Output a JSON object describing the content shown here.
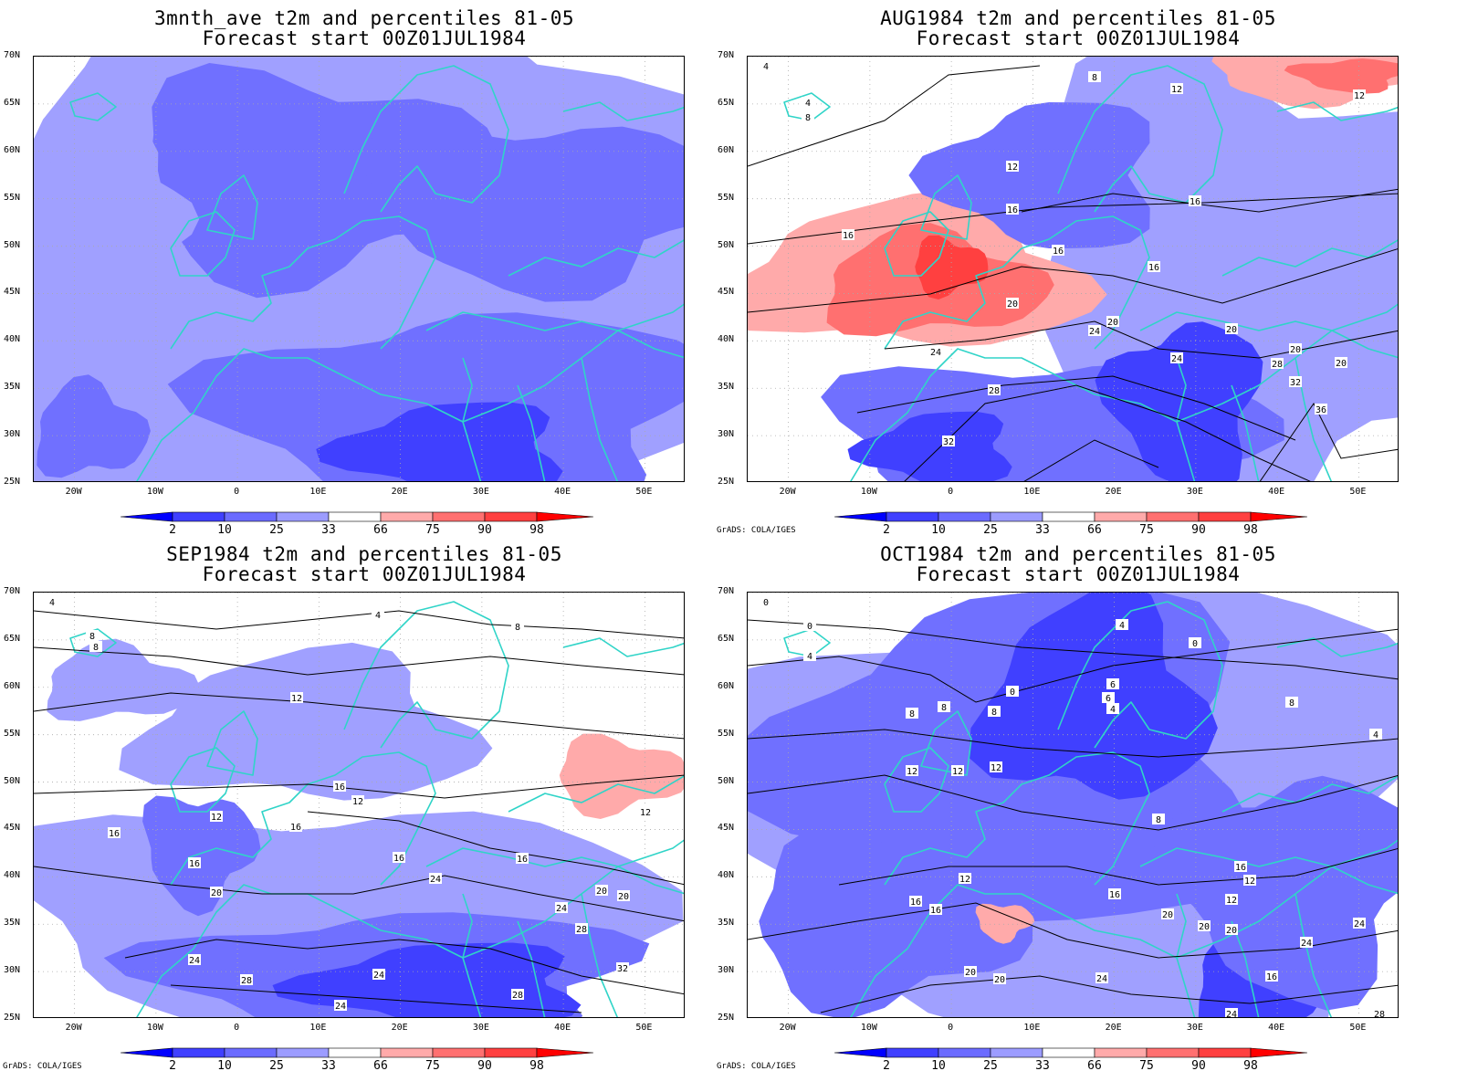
{
  "panels": [
    {
      "line1": "3mnth_ave t2m and percentiles 81-05",
      "line2": "Forecast start 00Z01JUL1984",
      "credit": ""
    },
    {
      "line1": "AUG1984 t2m and percentiles 81-05",
      "line2": "Forecast start 00Z01JUL1984",
      "credit": "GrADS: COLA/IGES"
    },
    {
      "line1": "SEP1984 t2m and percentiles 81-05",
      "line2": "Forecast start 00Z01JUL1984",
      "credit": "GrADS: COLA/IGES"
    },
    {
      "line1": "OCT1984 t2m and percentiles 81-05",
      "line2": "Forecast start 00Z01JUL1984",
      "credit": "GrADS: COLA/IGES"
    }
  ],
  "map": {
    "lat_labels": [
      "70N",
      "65N",
      "60N",
      "55N",
      "50N",
      "45N",
      "40N",
      "35N",
      "30N",
      "25N"
    ],
    "lon_labels": [
      "20W",
      "10W",
      "0",
      "10E",
      "20E",
      "30E",
      "40E",
      "50E"
    ],
    "lon_range": [
      -25,
      55
    ],
    "lat_range": [
      25,
      70
    ]
  },
  "colorbar": {
    "labels": [
      "2",
      "10",
      "25",
      "33",
      "66",
      "75",
      "90",
      "98"
    ],
    "colors": [
      "#0000ff",
      "#4040ff",
      "#6b6bff",
      "#9c9cff",
      "#ffffff",
      "#ffaaaa",
      "#ff7070",
      "#ff4040",
      "#ff0000"
    ]
  },
  "colors": {
    "coast": "#30d4c8",
    "contour": "#000000",
    "grid": "#aaaaaa",
    "shade_33": "#a0a0ff",
    "shade_25": "#7070ff",
    "shade_10": "#4040ff",
    "shade_66": "#ffaaaa",
    "shade_75": "#ff7070",
    "shade_90": "#ff4040"
  },
  "contour_labels": [
    [],
    [
      "4",
      "4",
      "8",
      "8",
      "12",
      "12",
      "12",
      "16",
      "16",
      "16",
      "16",
      "16",
      "20",
      "20",
      "20",
      "20",
      "20",
      "24",
      "24",
      "24",
      "28",
      "28",
      "32",
      "32",
      "36"
    ],
    [
      "4",
      "4",
      "8",
      "8",
      "8",
      "12",
      "12",
      "12",
      "12",
      "16",
      "16",
      "16",
      "16",
      "16",
      "16",
      "20",
      "20",
      "20",
      "24",
      "24",
      "24",
      "24",
      "24",
      "28",
      "28",
      "28",
      "32"
    ],
    [
      "0",
      "0",
      "0",
      "0",
      "4",
      "4",
      "4",
      "4",
      "6",
      "6",
      "8",
      "8",
      "8",
      "8",
      "8",
      "12",
      "12",
      "12",
      "12",
      "12",
      "12",
      "16",
      "16",
      "16",
      "16",
      "16",
      "20",
      "20",
      "20",
      "20",
      "20",
      "24",
      "24",
      "24",
      "24",
      "28"
    ]
  ]
}
